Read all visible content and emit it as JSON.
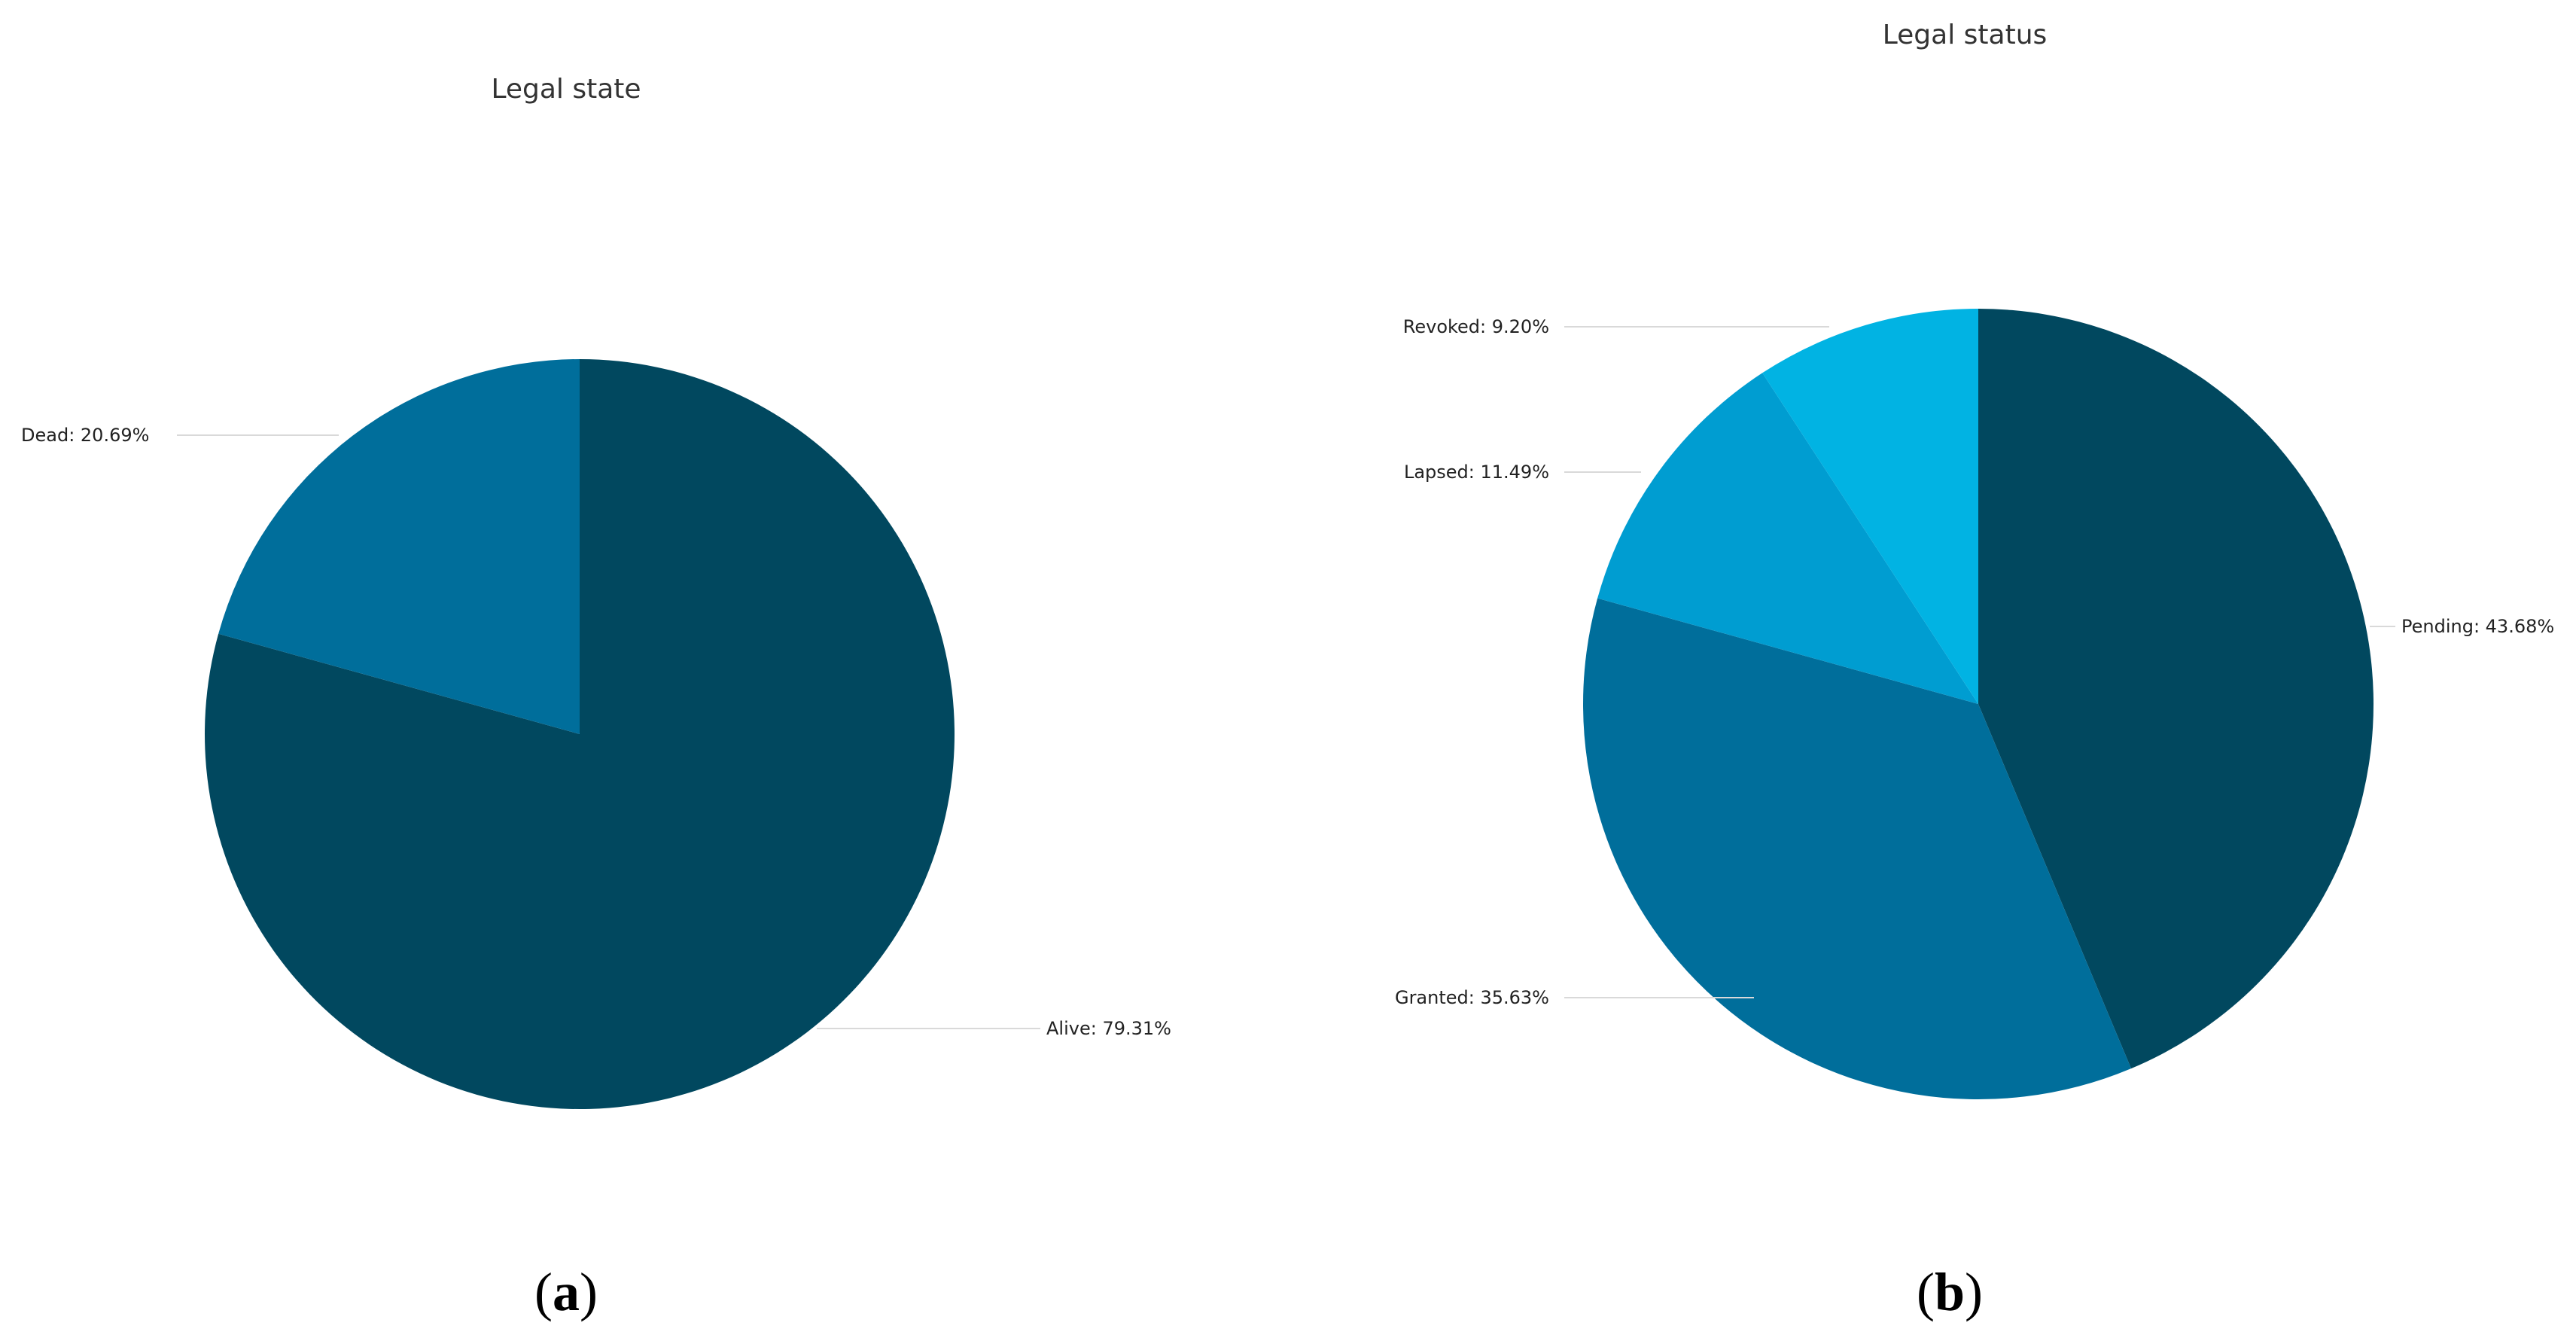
{
  "colors": {
    "alive": "#01485f",
    "dead": "#006e9b",
    "pending": "#01485f",
    "granted": "#006e9b",
    "lapsed": "#009dd1",
    "revoked": "#01b3e3"
  },
  "chart_data": [
    {
      "type": "pie",
      "panel": "a",
      "title": "Legal state",
      "slices": [
        {
          "name": "Alive",
          "value": 79.31,
          "label": "Alive: 79.31%",
          "color": "#01485f"
        },
        {
          "name": "Dead",
          "value": 20.69,
          "label": "Dead: 20.69%",
          "color": "#006e9b"
        }
      ]
    },
    {
      "type": "pie",
      "panel": "b",
      "title": "Legal status",
      "slices": [
        {
          "name": "Pending",
          "value": 43.68,
          "label": "Pending: 43.68%",
          "color": "#01485f"
        },
        {
          "name": "Granted",
          "value": 35.63,
          "label": "Granted: 35.63%",
          "color": "#006e9b"
        },
        {
          "name": "Lapsed",
          "value": 11.49,
          "label": "Lapsed: 11.49%",
          "color": "#009dd1"
        },
        {
          "name": "Revoked",
          "value": 9.2,
          "label": "Revoked: 9.20%",
          "color": "#01b3e3"
        }
      ]
    }
  ],
  "panel_labels": {
    "a": {
      "open": "(",
      "letter": "a",
      "close": ")"
    },
    "b": {
      "open": "(",
      "letter": "b",
      "close": ")"
    }
  }
}
